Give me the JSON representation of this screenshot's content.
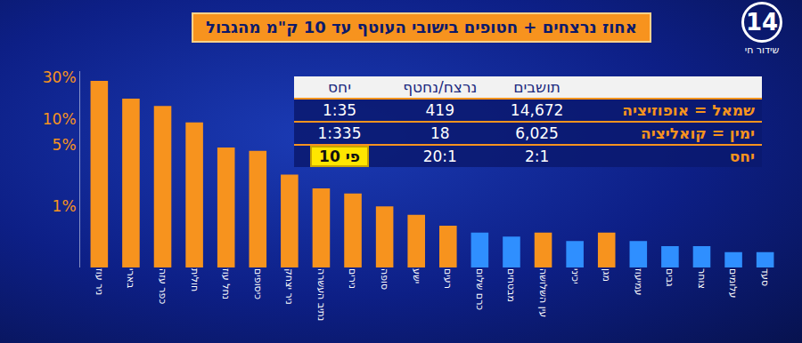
{
  "header": {
    "logo": "14",
    "live": "שידור חי",
    "title": "אחוז נרצחים + חטופים בישובי העוטף עד 10 ק\"מ מהגבול"
  },
  "chart_data": {
    "type": "bar",
    "categories": [
      "ניר עוז",
      "בארי",
      "כפר עזה",
      "חולית",
      "נחל עוז",
      "כיסופים",
      "ניר יצחק",
      "נתיב העשרה",
      "נירים",
      "סופה",
      "ישע",
      "רעים",
      "כרם שלום",
      "מבטחים",
      "עין השלושה",
      "יכיני",
      "מגן",
      "עמיעוז",
      "גבים",
      "צוחר",
      "עלומים",
      "סעד"
    ],
    "values": [
      27,
      17,
      14,
      9.1,
      4.7,
      4.3,
      2.3,
      1.6,
      1.4,
      1.0,
      0.8,
      0.6,
      0.5,
      0.45,
      0.5,
      0.4,
      0.5,
      0.4,
      0.35,
      0.35,
      0.3,
      0.3
    ],
    "colors": [
      "#f7931e",
      "#f7931e",
      "#f7931e",
      "#f7931e",
      "#f7931e",
      "#f7931e",
      "#f7931e",
      "#f7931e",
      "#f7931e",
      "#f7931e",
      "#f7931e",
      "#f7931e",
      "#2f8fff",
      "#2f8fff",
      "#f7931e",
      "#2f8fff",
      "#f7931e",
      "#2f8fff",
      "#2f8fff",
      "#2f8fff",
      "#2f8fff",
      "#2f8fff"
    ],
    "log": "y",
    "ylim": [
      0.2,
      35
    ],
    "yticks": [
      {
        "value": 1,
        "label": "1%"
      },
      {
        "value": 5,
        "label": "5%"
      },
      {
        "value": 10,
        "label": "10%"
      },
      {
        "value": 30,
        "label": "30%"
      }
    ],
    "grid": false
  },
  "table": {
    "columns": [
      "תושבים",
      "נרצח/נחטף",
      "יחס"
    ],
    "rows": [
      [
        "שמאל = אופוזיציה",
        "14,672",
        "419",
        "1:35"
      ],
      [
        "ימין = קואליציה",
        "6,025",
        "18",
        "1:335"
      ],
      [
        "יחס",
        "2:1",
        "20:1",
        "פי 10"
      ]
    ]
  }
}
